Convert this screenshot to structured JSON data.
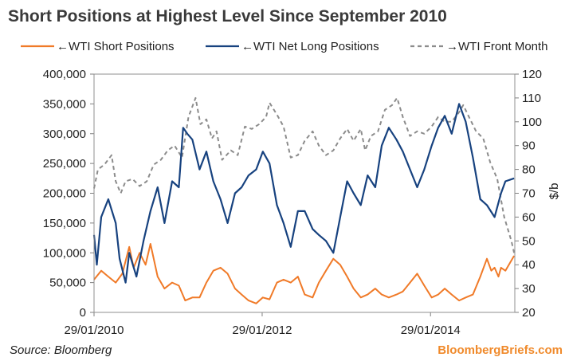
{
  "chart_data": {
    "type": "line",
    "title": "Short Positions at Highest Level Since September 2010",
    "source": "Source: Bloomberg",
    "brand": "BloombergBriefs.com",
    "x_ticks": [
      "29/01/2010",
      "29/01/2012",
      "29/01/2014"
    ],
    "xlim": [
      "2010-01-29",
      "2015-01-30"
    ],
    "y_left": {
      "ylim": [
        0,
        400000
      ],
      "ticks": [
        "0",
        "50,000",
        "100,000",
        "150,000",
        "200,000",
        "250,000",
        "300,000",
        "350,000",
        "400,000"
      ]
    },
    "y_right": {
      "label": "$/b",
      "ylim": [
        20,
        120
      ],
      "ticks": [
        "20",
        "30",
        "40",
        "50",
        "60",
        "70",
        "80",
        "90",
        "100",
        "110",
        "120"
      ]
    },
    "legend_position": "top",
    "grid": false,
    "colors": {
      "short": "#f07a28",
      "net_long": "#17427f",
      "front_month": "#8c8c8c"
    },
    "series": [
      {
        "name": "←WTI Short Positions",
        "axis": "left",
        "style": "solid",
        "points": [
          [
            "2010-01-29",
            55000
          ],
          [
            "2010-03-01",
            70000
          ],
          [
            "2010-04-01",
            60000
          ],
          [
            "2010-05-03",
            50000
          ],
          [
            "2010-06-01",
            65000
          ],
          [
            "2010-07-01",
            110000
          ],
          [
            "2010-07-20",
            75000
          ],
          [
            "2010-08-15",
            100000
          ],
          [
            "2010-09-10",
            80000
          ],
          [
            "2010-10-01",
            115000
          ],
          [
            "2010-11-01",
            60000
          ],
          [
            "2010-12-01",
            40000
          ],
          [
            "2011-01-03",
            50000
          ],
          [
            "2011-02-01",
            45000
          ],
          [
            "2011-03-01",
            20000
          ],
          [
            "2011-04-01",
            25000
          ],
          [
            "2011-05-02",
            25000
          ],
          [
            "2011-06-01",
            50000
          ],
          [
            "2011-07-01",
            70000
          ],
          [
            "2011-08-01",
            75000
          ],
          [
            "2011-09-01",
            65000
          ],
          [
            "2011-10-03",
            40000
          ],
          [
            "2011-11-01",
            30000
          ],
          [
            "2011-12-01",
            20000
          ],
          [
            "2012-01-03",
            15000
          ],
          [
            "2012-02-01",
            25000
          ],
          [
            "2012-03-01",
            22000
          ],
          [
            "2012-04-02",
            50000
          ],
          [
            "2012-05-01",
            55000
          ],
          [
            "2012-06-01",
            50000
          ],
          [
            "2012-07-02",
            60000
          ],
          [
            "2012-08-01",
            30000
          ],
          [
            "2012-09-04",
            25000
          ],
          [
            "2012-10-01",
            50000
          ],
          [
            "2012-11-01",
            70000
          ],
          [
            "2012-12-03",
            90000
          ],
          [
            "2013-01-02",
            80000
          ],
          [
            "2013-02-01",
            60000
          ],
          [
            "2013-03-01",
            40000
          ],
          [
            "2013-04-01",
            25000
          ],
          [
            "2013-05-01",
            30000
          ],
          [
            "2013-06-03",
            40000
          ],
          [
            "2013-07-01",
            30000
          ],
          [
            "2013-08-01",
            25000
          ],
          [
            "2013-09-03",
            30000
          ],
          [
            "2013-10-01",
            35000
          ],
          [
            "2013-11-01",
            50000
          ],
          [
            "2013-12-02",
            65000
          ],
          [
            "2014-01-02",
            45000
          ],
          [
            "2014-02-03",
            25000
          ],
          [
            "2014-03-03",
            30000
          ],
          [
            "2014-04-01",
            40000
          ],
          [
            "2014-05-01",
            30000
          ],
          [
            "2014-06-02",
            20000
          ],
          [
            "2014-07-01",
            25000
          ],
          [
            "2014-08-01",
            30000
          ],
          [
            "2014-09-02",
            60000
          ],
          [
            "2014-10-01",
            90000
          ],
          [
            "2014-10-20",
            70000
          ],
          [
            "2014-11-03",
            75000
          ],
          [
            "2014-11-20",
            60000
          ],
          [
            "2014-12-01",
            75000
          ],
          [
            "2014-12-20",
            70000
          ],
          [
            "2015-01-27",
            95000
          ]
        ]
      },
      {
        "name": "←WTI Net Long Positions",
        "axis": "left",
        "style": "solid",
        "points": [
          [
            "2010-01-29",
            130000
          ],
          [
            "2010-02-10",
            80000
          ],
          [
            "2010-03-01",
            160000
          ],
          [
            "2010-04-01",
            190000
          ],
          [
            "2010-05-03",
            150000
          ],
          [
            "2010-05-20",
            90000
          ],
          [
            "2010-06-15",
            50000
          ],
          [
            "2010-07-01",
            100000
          ],
          [
            "2010-08-01",
            60000
          ],
          [
            "2010-09-01",
            120000
          ],
          [
            "2010-10-01",
            170000
          ],
          [
            "2010-11-01",
            210000
          ],
          [
            "2010-12-01",
            150000
          ],
          [
            "2011-01-03",
            220000
          ],
          [
            "2011-02-01",
            210000
          ],
          [
            "2011-02-20",
            310000
          ],
          [
            "2011-03-10",
            300000
          ],
          [
            "2011-04-01",
            290000
          ],
          [
            "2011-05-02",
            240000
          ],
          [
            "2011-06-01",
            270000
          ],
          [
            "2011-07-01",
            220000
          ],
          [
            "2011-08-01",
            190000
          ],
          [
            "2011-09-01",
            150000
          ],
          [
            "2011-10-03",
            200000
          ],
          [
            "2011-11-01",
            210000
          ],
          [
            "2011-12-01",
            230000
          ],
          [
            "2012-01-03",
            240000
          ],
          [
            "2012-02-01",
            270000
          ],
          [
            "2012-03-01",
            250000
          ],
          [
            "2012-04-02",
            180000
          ],
          [
            "2012-05-01",
            150000
          ],
          [
            "2012-06-01",
            110000
          ],
          [
            "2012-07-02",
            170000
          ],
          [
            "2012-08-01",
            170000
          ],
          [
            "2012-09-04",
            140000
          ],
          [
            "2012-10-01",
            130000
          ],
          [
            "2012-11-01",
            120000
          ],
          [
            "2012-12-03",
            100000
          ],
          [
            "2013-01-02",
            160000
          ],
          [
            "2013-02-01",
            220000
          ],
          [
            "2013-03-01",
            200000
          ],
          [
            "2013-04-01",
            180000
          ],
          [
            "2013-05-01",
            230000
          ],
          [
            "2013-06-03",
            210000
          ],
          [
            "2013-07-01",
            280000
          ],
          [
            "2013-08-01",
            310000
          ],
          [
            "2013-09-03",
            290000
          ],
          [
            "2013-10-01",
            270000
          ],
          [
            "2013-11-01",
            240000
          ],
          [
            "2013-12-02",
            210000
          ],
          [
            "2014-01-02",
            240000
          ],
          [
            "2014-02-03",
            280000
          ],
          [
            "2014-03-03",
            310000
          ],
          [
            "2014-04-01",
            330000
          ],
          [
            "2014-05-01",
            300000
          ],
          [
            "2014-06-02",
            350000
          ],
          [
            "2014-07-01",
            320000
          ],
          [
            "2014-08-01",
            260000
          ],
          [
            "2014-09-02",
            190000
          ],
          [
            "2014-10-01",
            180000
          ],
          [
            "2014-11-03",
            160000
          ],
          [
            "2014-12-01",
            200000
          ],
          [
            "2014-12-20",
            220000
          ],
          [
            "2015-01-27",
            225000
          ]
        ]
      },
      {
        "name": "→WTI Front Month",
        "axis": "right",
        "style": "dashed",
        "points": [
          [
            "2010-01-29",
            72
          ],
          [
            "2010-02-15",
            80
          ],
          [
            "2010-03-15",
            82
          ],
          [
            "2010-04-15",
            86
          ],
          [
            "2010-05-03",
            75
          ],
          [
            "2010-05-25",
            70
          ],
          [
            "2010-06-15",
            75
          ],
          [
            "2010-07-15",
            76
          ],
          [
            "2010-08-15",
            73
          ],
          [
            "2010-09-15",
            75
          ],
          [
            "2010-10-15",
            82
          ],
          [
            "2010-11-15",
            84
          ],
          [
            "2010-12-15",
            88
          ],
          [
            "2011-01-14",
            90
          ],
          [
            "2011-02-15",
            85
          ],
          [
            "2011-03-15",
            102
          ],
          [
            "2011-04-15",
            110
          ],
          [
            "2011-05-06",
            99
          ],
          [
            "2011-06-01",
            101
          ],
          [
            "2011-06-25",
            93
          ],
          [
            "2011-07-15",
            96
          ],
          [
            "2011-08-08",
            84
          ],
          [
            "2011-09-15",
            88
          ],
          [
            "2011-10-15",
            86
          ],
          [
            "2011-11-15",
            98
          ],
          [
            "2011-12-15",
            97
          ],
          [
            "2012-01-16",
            99
          ],
          [
            "2012-02-15",
            102
          ],
          [
            "2012-03-01",
            108
          ],
          [
            "2012-04-02",
            103
          ],
          [
            "2012-05-01",
            98
          ],
          [
            "2012-06-01",
            85
          ],
          [
            "2012-07-02",
            86
          ],
          [
            "2012-08-01",
            92
          ],
          [
            "2012-09-04",
            96
          ],
          [
            "2012-10-01",
            90
          ],
          [
            "2012-11-01",
            86
          ],
          [
            "2012-12-03",
            88
          ],
          [
            "2013-01-02",
            93
          ],
          [
            "2013-02-01",
            97
          ],
          [
            "2013-03-01",
            92
          ],
          [
            "2013-04-01",
            97
          ],
          [
            "2013-04-20",
            88
          ],
          [
            "2013-05-15",
            94
          ],
          [
            "2013-06-15",
            96
          ],
          [
            "2013-07-15",
            105
          ],
          [
            "2013-08-15",
            107
          ],
          [
            "2013-09-06",
            110
          ],
          [
            "2013-10-01",
            102
          ],
          [
            "2013-11-01",
            94
          ],
          [
            "2013-12-02",
            96
          ],
          [
            "2014-01-02",
            95
          ],
          [
            "2014-02-03",
            98
          ],
          [
            "2014-03-03",
            102
          ],
          [
            "2014-04-01",
            100
          ],
          [
            "2014-05-01",
            100
          ],
          [
            "2014-06-02",
            104
          ],
          [
            "2014-06-20",
            107
          ],
          [
            "2014-07-15",
            102
          ],
          [
            "2014-08-15",
            96
          ],
          [
            "2014-09-15",
            93
          ],
          [
            "2014-10-15",
            83
          ],
          [
            "2014-11-15",
            76
          ],
          [
            "2014-12-15",
            60
          ],
          [
            "2015-01-15",
            50
          ],
          [
            "2015-01-27",
            45
          ]
        ]
      }
    ]
  }
}
